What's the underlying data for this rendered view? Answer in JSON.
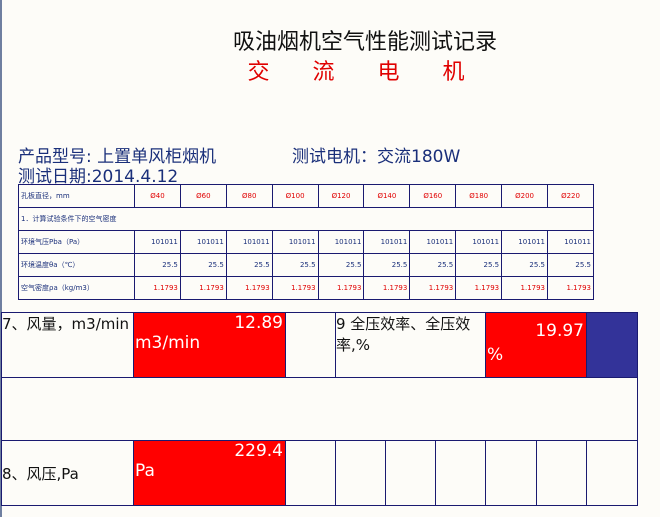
{
  "title": "吸油烟机空气性能测试记录",
  "subtitle": "交 流 电 机",
  "info": {
    "product": "产品型号: 上置单风柜烟机",
    "motor": "测试电机：交流180W",
    "date": "测试日期:2014.4.12"
  },
  "density_table": {
    "header_label": "孔板直径，mm",
    "diameters": [
      "Ø40",
      "Ø60",
      "Ø80",
      "Ø100",
      "Ø120",
      "Ø140",
      "Ø160",
      "Ø180",
      "Ø200",
      "Ø220"
    ],
    "section_label": "1．计算试验条件下的空气密度",
    "rows": [
      {
        "label": "环境气压Pba（Pa）",
        "values": [
          "101011",
          "101011",
          "101011",
          "101011",
          "101011",
          "101011",
          "101011",
          "101011",
          "101011",
          "101011"
        ]
      },
      {
        "label": "环境温度θa（℃）",
        "values": [
          "25.5",
          "25.5",
          "25.5",
          "25.5",
          "25.5",
          "25.5",
          "25.5",
          "25.5",
          "25.5",
          "25.5"
        ]
      },
      {
        "label": "空气密度ρa（kg/m3）",
        "values": [
          "1.1793",
          "1.1793",
          "1.1793",
          "1.1793",
          "1.1793",
          "1.1793",
          "1.1793",
          "1.1793",
          "1.1793",
          "1.1793"
        ]
      }
    ]
  },
  "results": {
    "airflow": {
      "label": "7、风量，m3/min",
      "value": "12.89",
      "unit": "m3/min"
    },
    "efficiency": {
      "label": "9 全压效率、全压效率,%",
      "value": "19.97",
      "unit": "%"
    },
    "pressure": {
      "label": "8、风压,Pa",
      "value": "229.4",
      "unit": "Pa"
    }
  },
  "colors": {
    "highlight": "#ff0000",
    "accent": "#333399",
    "text_blue": "#1a2f7a"
  }
}
